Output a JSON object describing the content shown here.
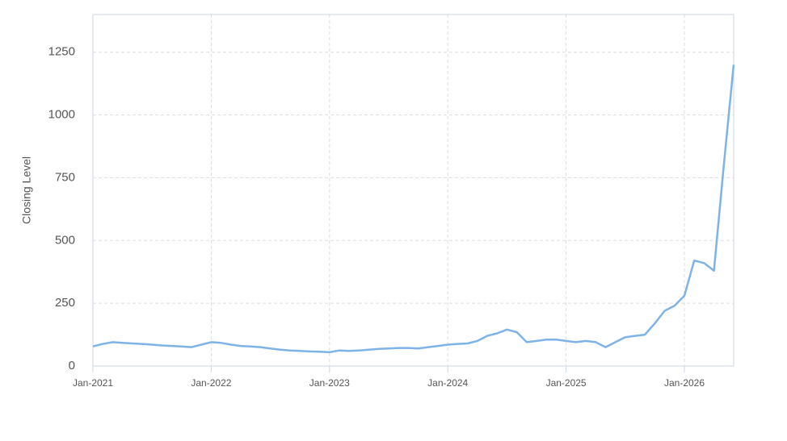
{
  "chart_data": {
    "type": "line",
    "y_label": "Closing Level",
    "x": [
      "2021-01",
      "2021-02",
      "2021-03",
      "2021-04",
      "2021-05",
      "2021-06",
      "2021-07",
      "2021-08",
      "2021-09",
      "2021-10",
      "2021-11",
      "2021-12",
      "2022-01",
      "2022-02",
      "2022-03",
      "2022-04",
      "2022-05",
      "2022-06",
      "2022-07",
      "2022-08",
      "2022-09",
      "2022-10",
      "2022-11",
      "2022-12",
      "2023-01",
      "2023-02",
      "2023-03",
      "2023-04",
      "2023-05",
      "2023-06",
      "2023-07",
      "2023-08",
      "2023-09",
      "2023-10",
      "2023-11",
      "2023-12",
      "2024-01",
      "2024-02",
      "2024-03",
      "2024-04",
      "2024-05",
      "2024-06",
      "2024-07",
      "2024-08",
      "2024-09",
      "2024-10",
      "2024-11",
      "2024-12",
      "2025-01",
      "2025-02",
      "2025-03",
      "2025-04",
      "2025-05",
      "2025-06",
      "2025-07",
      "2025-08",
      "2025-09",
      "2025-10",
      "2025-11",
      "2025-12",
      "2026-01",
      "2026-02",
      "2026-03",
      "2026-04",
      "2026-05",
      "2026-06"
    ],
    "series": [
      {
        "name": "Closing Level",
        "color": "#7eb3e8",
        "values": [
          78,
          88,
          95,
          92,
          90,
          88,
          85,
          82,
          80,
          78,
          75,
          85,
          95,
          92,
          85,
          80,
          78,
          75,
          70,
          65,
          62,
          60,
          58,
          57,
          55,
          62,
          60,
          62,
          65,
          68,
          70,
          72,
          72,
          70,
          75,
          80,
          85,
          88,
          90,
          100,
          120,
          130,
          145,
          135,
          95,
          100,
          105,
          105,
          100,
          95,
          100,
          95,
          75,
          95,
          115,
          120,
          125,
          170,
          220,
          240,
          280,
          420,
          410,
          380,
          800,
          1200
        ]
      }
    ],
    "xlim": [
      "2021-01",
      "2026-06"
    ],
    "xticks": [
      {
        "value": "2021-01",
        "label": "Jan-2021"
      },
      {
        "value": "2022-01",
        "label": "Jan-2022"
      },
      {
        "value": "2023-01",
        "label": "Jan-2023"
      },
      {
        "value": "2024-01",
        "label": "Jan-2024"
      },
      {
        "value": "2025-01",
        "label": "Jan-2025"
      },
      {
        "value": "2026-01",
        "label": "Jan-2026"
      }
    ],
    "ylim": [
      0,
      1400
    ],
    "yticks": [
      0,
      250,
      500,
      750,
      1000,
      1250
    ],
    "grid": true
  }
}
